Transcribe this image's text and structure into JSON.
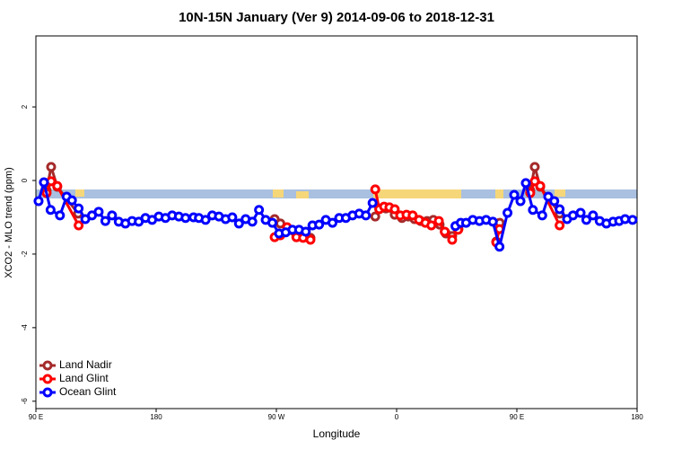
{
  "chart_data": {
    "type": "line",
    "title": "10N-15N January (Ver 9)   2014-09-06 to 2018-12-31",
    "xlabel": "Longitude",
    "ylabel": "XCO2 - MLO trend (ppm)",
    "xlim": [
      90,
      540
    ],
    "ylim": [
      -6.2,
      3.93
    ],
    "xticks": [
      {
        "value": 90,
        "label": "90 E"
      },
      180,
      {
        "value": 270,
        "label": "90 W"
      },
      {
        "value": 360,
        "label": "0"
      },
      {
        "value": 450,
        "label": "90 E"
      },
      {
        "value": 540,
        "label": "180"
      }
    ],
    "yticks": [
      -6,
      -4,
      -2,
      0,
      2
    ],
    "legend": "bottom-left",
    "series": [
      {
        "name": "Land Nadir",
        "color": "#a52a2a",
        "x": [
          98,
          101.4,
          106,
          121.6,
          null,
          268.7,
          273,
          278,
          285,
          290,
          295.5,
          null,
          344,
          347,
          352,
          358.6,
          364,
          368.7,
          373.4,
          378,
          382.8,
          387.5,
          392.2,
          396.9,
          401.6,
          406.3,
          null,
          434.6,
          437.2,
          null,
          460,
          463.4,
          467.5,
          482
        ],
        "values": [
          -0.27,
          0.37,
          -0.17,
          -0.9,
          null,
          -1.05,
          -1.17,
          -1.37,
          -1.54,
          -1.51,
          -1.56,
          null,
          -0.98,
          -0.76,
          -0.76,
          -0.93,
          -1.02,
          -0.98,
          -1.05,
          -1.1,
          -1.1,
          -1.07,
          -1.2,
          -1.44,
          -1.51,
          -1.32,
          null,
          -1.66,
          -1.15,
          null,
          -0.27,
          0.37,
          -0.17,
          -0.9
        ]
      },
      {
        "name": "Land Glint",
        "color": "#ff0000",
        "x": [
          98,
          101.4,
          106,
          122,
          null,
          268.7,
          273,
          278,
          285,
          290,
          295.5,
          null,
          344,
          347,
          350.6,
          354.6,
          358.6,
          362.7,
          367.4,
          372,
          376.8,
          381.5,
          386,
          391.6,
          396,
          401.6,
          406,
          null,
          434.6,
          437,
          null,
          460,
          463.4,
          467.5,
          482
        ],
        "values": [
          -0.34,
          -0.02,
          -0.15,
          -1.22,
          null,
          -1.54,
          -1.49,
          -1.27,
          -1.54,
          -1.56,
          -1.61,
          null,
          -0.24,
          -0.78,
          -0.71,
          -0.73,
          -0.78,
          -0.95,
          -0.93,
          -0.95,
          -1.07,
          -1.15,
          -1.22,
          -1.1,
          -1.39,
          -1.61,
          -1.34,
          null,
          -1.68,
          -1.32,
          null,
          -0.34,
          -0.02,
          -0.15,
          -1.22
        ]
      },
      {
        "name": "Ocean Glint",
        "color": "#0000ff",
        "x": [
          92,
          96,
          101,
          108,
          113,
          117,
          122,
          127,
          132,
          137,
          142,
          147,
          152,
          157,
          162,
          167,
          172,
          177,
          182,
          187,
          192,
          197,
          202,
          208,
          212,
          217,
          222,
          227,
          232,
          237,
          242,
          247,
          252,
          257,
          262,
          267,
          272,
          277,
          282,
          287,
          292,
          297,
          302,
          307,
          312,
          317,
          322,
          327,
          332,
          337,
          342,
          null,
          404,
          408,
          412,
          417,
          422,
          427,
          432,
          437,
          443,
          448,
          452.7,
          456.7,
          462,
          469,
          473.5,
          478,
          482,
          487.6,
          492,
          497.7,
          502,
          507,
          512,
          517,
          522,
          526.6,
          531,
          536.6
        ],
        "values": [
          -0.56,
          -0.05,
          -0.8,
          -0.95,
          -0.44,
          -0.54,
          -0.76,
          -1.05,
          -0.95,
          -0.85,
          -1.1,
          -0.95,
          -1.12,
          -1.17,
          -1.1,
          -1.12,
          -1.02,
          -1.07,
          -0.98,
          -1.02,
          -0.95,
          -0.98,
          -1.02,
          -1.0,
          -1.02,
          -1.07,
          -0.95,
          -0.98,
          -1.05,
          -1.0,
          -1.17,
          -1.05,
          -1.12,
          -0.8,
          -1.07,
          -1.15,
          -1.44,
          -1.41,
          -1.34,
          -1.34,
          -1.39,
          -1.22,
          -1.2,
          -1.07,
          -1.15,
          -1.02,
          -1.02,
          -0.95,
          -0.9,
          -0.95,
          -0.61,
          null,
          -1.24,
          -1.15,
          -1.15,
          -1.07,
          -1.1,
          -1.07,
          -1.12,
          -1.8,
          -0.88,
          -0.39,
          -0.56,
          -0.07,
          -0.8,
          -0.95,
          -0.44,
          -0.56,
          -0.78,
          -1.05,
          -0.95,
          -0.88,
          -1.07,
          -0.95,
          -1.1,
          -1.17,
          -1.12,
          -1.1,
          -1.05,
          -1.07
        ]
      }
    ]
  }
}
